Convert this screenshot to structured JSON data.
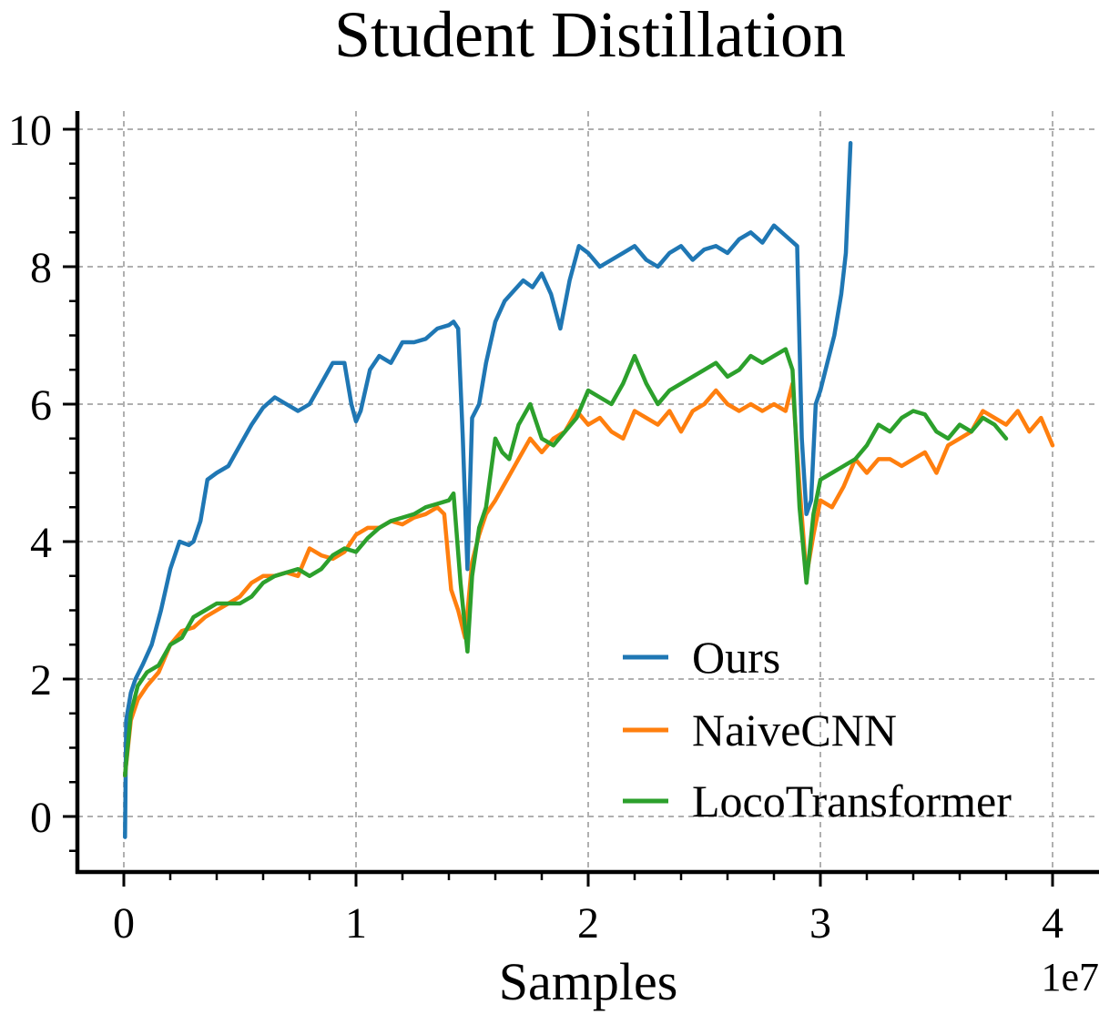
{
  "chart_data": {
    "type": "line",
    "title": "Student Distillation",
    "xlabel": "Samples",
    "ylabel": "",
    "x_offset_label": "1e7",
    "xlim": [
      -0.2,
      4.2
    ],
    "ylim": [
      -0.85,
      10.3
    ],
    "x_ticks": [
      0,
      1,
      2,
      3,
      4
    ],
    "x_tick_labels": [
      "0",
      "1",
      "2",
      "3",
      "4"
    ],
    "y_ticks": [
      0,
      2,
      4,
      6,
      8,
      10
    ],
    "y_tick_labels": [
      "0",
      "2",
      "4",
      "6",
      "8",
      "10"
    ],
    "grid": true,
    "legend_position": "lower-right",
    "series": [
      {
        "name": "Ours",
        "color": "#1f77b4",
        "x": [
          0.005,
          0.01,
          0.03,
          0.05,
          0.08,
          0.12,
          0.16,
          0.2,
          0.24,
          0.28,
          0.3,
          0.33,
          0.36,
          0.4,
          0.45,
          0.5,
          0.55,
          0.6,
          0.65,
          0.7,
          0.75,
          0.8,
          0.85,
          0.9,
          0.95,
          0.98,
          1.0,
          1.02,
          1.06,
          1.1,
          1.15,
          1.2,
          1.25,
          1.3,
          1.35,
          1.4,
          1.42,
          1.44,
          1.46,
          1.48,
          1.5,
          1.53,
          1.56,
          1.6,
          1.64,
          1.68,
          1.72,
          1.76,
          1.8,
          1.84,
          1.88,
          1.92,
          1.96,
          2.0,
          2.05,
          2.1,
          2.15,
          2.2,
          2.25,
          2.3,
          2.35,
          2.4,
          2.45,
          2.5,
          2.55,
          2.6,
          2.65,
          2.7,
          2.75,
          2.8,
          2.85,
          2.9,
          2.92,
          2.94,
          2.96,
          2.98,
          3.0,
          3.03,
          3.06,
          3.09,
          3.11,
          3.13
        ],
        "y": [
          -0.3,
          1.4,
          1.8,
          2.0,
          2.2,
          2.5,
          3.0,
          3.6,
          4.0,
          3.95,
          4.0,
          4.3,
          4.9,
          5.0,
          5.1,
          5.4,
          5.7,
          5.95,
          6.1,
          6.0,
          5.9,
          6.0,
          6.3,
          6.6,
          6.6,
          6.0,
          5.75,
          5.9,
          6.5,
          6.7,
          6.6,
          6.9,
          6.9,
          6.95,
          7.1,
          7.15,
          7.2,
          7.1,
          5.5,
          3.6,
          5.8,
          6.0,
          6.6,
          7.2,
          7.5,
          7.65,
          7.8,
          7.7,
          7.9,
          7.6,
          7.1,
          7.8,
          8.3,
          8.2,
          8.0,
          8.1,
          8.2,
          8.3,
          8.1,
          8.0,
          8.2,
          8.3,
          8.1,
          8.25,
          8.3,
          8.2,
          8.4,
          8.5,
          8.35,
          8.6,
          8.45,
          8.3,
          5.5,
          4.4,
          4.6,
          6.0,
          6.2,
          6.6,
          7.0,
          7.6,
          8.2,
          9.8
        ]
      },
      {
        "name": "NaiveCNN",
        "color": "#ff7f0e",
        "x": [
          0.005,
          0.03,
          0.06,
          0.1,
          0.15,
          0.2,
          0.25,
          0.3,
          0.35,
          0.4,
          0.45,
          0.5,
          0.55,
          0.6,
          0.65,
          0.7,
          0.75,
          0.8,
          0.85,
          0.9,
          0.95,
          1.0,
          1.05,
          1.1,
          1.15,
          1.2,
          1.25,
          1.3,
          1.35,
          1.38,
          1.41,
          1.44,
          1.47,
          1.5,
          1.53,
          1.56,
          1.6,
          1.65,
          1.7,
          1.75,
          1.8,
          1.85,
          1.9,
          1.95,
          2.0,
          2.05,
          2.1,
          2.15,
          2.2,
          2.25,
          2.3,
          2.35,
          2.4,
          2.45,
          2.5,
          2.55,
          2.6,
          2.65,
          2.7,
          2.75,
          2.8,
          2.85,
          2.88,
          2.91,
          2.94,
          2.97,
          3.0,
          3.05,
          3.1,
          3.15,
          3.2,
          3.25,
          3.3,
          3.35,
          3.4,
          3.45,
          3.5,
          3.55,
          3.6,
          3.65,
          3.7,
          3.75,
          3.8,
          3.85,
          3.9,
          3.95,
          4.0
        ],
        "y": [
          0.6,
          1.4,
          1.7,
          1.9,
          2.1,
          2.5,
          2.7,
          2.75,
          2.9,
          3.0,
          3.1,
          3.2,
          3.4,
          3.5,
          3.5,
          3.55,
          3.5,
          3.9,
          3.8,
          3.75,
          3.85,
          4.1,
          4.2,
          4.2,
          4.3,
          4.25,
          4.35,
          4.4,
          4.5,
          4.4,
          3.3,
          3.0,
          2.6,
          3.7,
          4.1,
          4.4,
          4.6,
          4.9,
          5.2,
          5.5,
          5.3,
          5.5,
          5.6,
          5.9,
          5.7,
          5.8,
          5.6,
          5.5,
          5.9,
          5.8,
          5.7,
          5.9,
          5.6,
          5.9,
          6.0,
          6.2,
          6.0,
          5.9,
          6.0,
          5.9,
          6.0,
          5.9,
          6.3,
          4.8,
          3.5,
          4.1,
          4.6,
          4.5,
          4.8,
          5.2,
          5.0,
          5.2,
          5.2,
          5.1,
          5.2,
          5.3,
          5.0,
          5.4,
          5.5,
          5.6,
          5.9,
          5.8,
          5.7,
          5.9,
          5.6,
          5.8,
          5.4
        ]
      },
      {
        "name": "LocoTransformer",
        "color": "#2ca02c",
        "x": [
          0.005,
          0.03,
          0.06,
          0.1,
          0.15,
          0.2,
          0.25,
          0.3,
          0.35,
          0.4,
          0.45,
          0.5,
          0.55,
          0.6,
          0.65,
          0.7,
          0.75,
          0.8,
          0.85,
          0.9,
          0.95,
          1.0,
          1.05,
          1.1,
          1.15,
          1.2,
          1.25,
          1.3,
          1.35,
          1.4,
          1.42,
          1.45,
          1.48,
          1.5,
          1.53,
          1.56,
          1.6,
          1.63,
          1.66,
          1.7,
          1.75,
          1.8,
          1.85,
          1.9,
          1.95,
          2.0,
          2.05,
          2.1,
          2.15,
          2.2,
          2.25,
          2.3,
          2.35,
          2.4,
          2.45,
          2.5,
          2.55,
          2.6,
          2.65,
          2.7,
          2.75,
          2.8,
          2.85,
          2.88,
          2.91,
          2.94,
          2.97,
          3.0,
          3.05,
          3.1,
          3.15,
          3.2,
          3.25,
          3.3,
          3.35,
          3.4,
          3.45,
          3.5,
          3.55,
          3.6,
          3.65,
          3.7,
          3.75,
          3.8
        ],
        "y": [
          0.6,
          1.5,
          1.9,
          2.1,
          2.2,
          2.5,
          2.6,
          2.9,
          3.0,
          3.1,
          3.1,
          3.1,
          3.2,
          3.4,
          3.5,
          3.55,
          3.6,
          3.5,
          3.6,
          3.8,
          3.9,
          3.85,
          4.05,
          4.2,
          4.3,
          4.35,
          4.4,
          4.5,
          4.55,
          4.6,
          4.7,
          3.4,
          2.4,
          3.5,
          4.2,
          4.5,
          5.5,
          5.3,
          5.2,
          5.7,
          6.0,
          5.5,
          5.4,
          5.6,
          5.8,
          6.2,
          6.1,
          6.0,
          6.3,
          6.7,
          6.3,
          6.0,
          6.2,
          6.3,
          6.4,
          6.5,
          6.6,
          6.4,
          6.5,
          6.7,
          6.6,
          6.7,
          6.8,
          6.5,
          4.5,
          3.4,
          4.4,
          4.9,
          5.0,
          5.1,
          5.2,
          5.4,
          5.7,
          5.6,
          5.8,
          5.9,
          5.85,
          5.6,
          5.5,
          5.7,
          5.6,
          5.8,
          5.7,
          5.5
        ]
      }
    ]
  }
}
